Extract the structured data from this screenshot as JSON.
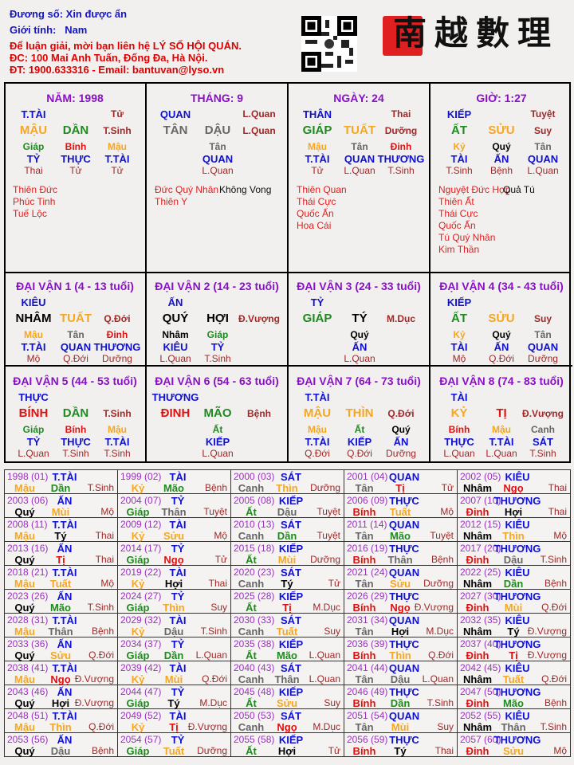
{
  "header": {
    "owner": "Đương số: Xin được ẩn",
    "gender_label": "Giới tính:",
    "gender": "Nam",
    "contact_1": "Để luận giải, mời bạn liên hệ LÝ SỐ HỘI QUÁN.",
    "contact_2": "ĐC: 100 Mai Anh Tuấn, Đống Đa, Hà Nội.",
    "contact_3": "ĐT: 1900.633316 - Email: bantuvan@lyso.vn",
    "logo_text": "南越數理",
    "qr_icon": "qr-code-icon"
  },
  "element_colors": {
    "wood": "#1f8a1f",
    "fire": "#e01010",
    "earth": "#f5a623",
    "metal": "#666666",
    "water": "#000000"
  },
  "element_of": {
    "giáp": "wood",
    "ất": "wood",
    "bính": "fire",
    "đinh": "fire",
    "mậu": "earth",
    "kỷ": "earth",
    "canh": "metal",
    "tân": "metal",
    "nhâm": "water",
    "quý": "water",
    "dần": "wood",
    "mão": "wood",
    "tị": "fire",
    "ngọ": "fire",
    "thìn": "earth",
    "tuất": "earth",
    "sửu": "earth",
    "mùi": "earth",
    "thân": "metal",
    "dậu": "metal",
    "tý": "water",
    "hợi": "water"
  },
  "pillars": [
    {
      "title": "NĂM: 1998",
      "god": "T.TÀI",
      "stage_top": "Tử",
      "stem": "MẬU",
      "branch": "DẦN",
      "stage": "T.Sinh",
      "hidden": [
        [
          "Giáp",
          "TỶ",
          "Thai"
        ],
        [
          "Bính",
          "THỰC",
          "Tử"
        ],
        [
          "Mậu",
          "T.TÀI",
          "Tử"
        ]
      ],
      "stars_red": [
        "Thiên Đức",
        "Phúc Tinh",
        "Tuế Lộc"
      ],
      "stars_black": []
    },
    {
      "title": "THÁNG: 9",
      "god": "QUAN",
      "stage_top": "L.Quan",
      "stem": "TÂN",
      "branch": "DẬU",
      "stage": "L.Quan",
      "hidden": [
        [
          "Tân",
          "QUAN",
          "L.Quan"
        ]
      ],
      "stars_red": [
        "Đức Quý Nhân",
        "Thiên Y"
      ],
      "stars_black": [
        "Không Vong"
      ]
    },
    {
      "title": "NGÀY: 24",
      "god": "THÂN",
      "stage_top": "Thai",
      "stem": "GIÁP",
      "branch": "TUẤT",
      "stage": "Dưỡng",
      "hidden": [
        [
          "Mậu",
          "T.TÀI",
          "Tử"
        ],
        [
          "Tân",
          "QUAN",
          "L.Quan"
        ],
        [
          "Đinh",
          "THƯƠNG",
          "T.Sinh"
        ]
      ],
      "stars_red": [
        "Thiên Quan",
        "Thái Cực",
        "Quốc Ấn",
        "Hoa Cái"
      ],
      "stars_black": []
    },
    {
      "title": "GIỜ: 1:27",
      "god": "KIẾP",
      "stage_top": "Tuyệt",
      "stem": "ẤT",
      "branch": "SỬU",
      "stage": "Suy",
      "hidden": [
        [
          "Kỷ",
          "TÀI",
          "T.Sinh"
        ],
        [
          "Quý",
          "ẤN",
          "Bệnh"
        ],
        [
          "Tân",
          "QUAN",
          "L.Quan"
        ]
      ],
      "stars_red": [
        "Nguyệt Đức Hợp",
        "Thiên Ất",
        "Thái Cực",
        "Quốc Ấn",
        "Tú Quý Nhân",
        "Kim Thần"
      ],
      "stars_black": [
        "Quả Tú"
      ]
    }
  ],
  "dai_van": [
    {
      "title": "ĐẠI VẬN 1 (4 - 13 tuổi)",
      "god": "KIÊU",
      "stem": "NHÂM",
      "branch": "TUẤT",
      "stage": "Q.Đới",
      "hidden": [
        [
          "Mậu",
          "T.TÀI",
          "Mộ"
        ],
        [
          "Tân",
          "QUAN",
          "Q.Đới"
        ],
        [
          "Đinh",
          "THƯƠNG",
          "Dưỡng"
        ]
      ]
    },
    {
      "title": "ĐẠI VẬN 2 (14 - 23 tuổi)",
      "god": "ẤN",
      "stem": "QUÝ",
      "branch": "HỢI",
      "stage": "Đ.Vượng",
      "hidden": [
        [
          "Nhâm",
          "KIÊU",
          "L.Quan"
        ],
        [
          "Giáp",
          "TỶ",
          "T.Sinh"
        ]
      ]
    },
    {
      "title": "ĐẠI VẬN 3 (24 - 33 tuổi)",
      "god": "TỶ",
      "stem": "GIÁP",
      "branch": "TÝ",
      "stage": "M.Dục",
      "hidden": [
        [
          "Quý",
          "ẤN",
          "L.Quan"
        ]
      ]
    },
    {
      "title": "ĐẠI VẬN 4 (34 - 43 tuổi)",
      "god": "KIẾP",
      "stem": "ẤT",
      "branch": "SỬU",
      "stage": "Suy",
      "hidden": [
        [
          "Kỷ",
          "TÀI",
          "Mộ"
        ],
        [
          "Quý",
          "ẤN",
          "Q.Đới"
        ],
        [
          "Tân",
          "QUAN",
          "Dưỡng"
        ]
      ]
    },
    {
      "title": "ĐẠI VẬN 5 (44 - 53 tuổi)",
      "god": "THỰC",
      "stem": "BÍNH",
      "branch": "DẦN",
      "stage": "T.Sinh",
      "hidden": [
        [
          "Giáp",
          "TỶ",
          "L.Quan"
        ],
        [
          "Bính",
          "THỰC",
          "T.Sinh"
        ],
        [
          "Mậu",
          "T.TÀI",
          "T.Sinh"
        ]
      ]
    },
    {
      "title": "ĐẠI VẬN 6 (54 - 63 tuổi)",
      "god": "THƯƠNG",
      "stem": "ĐINH",
      "branch": "MÃO",
      "stage": "Bệnh",
      "hidden": [
        [
          "Ất",
          "KIẾP",
          "L.Quan"
        ]
      ]
    },
    {
      "title": "ĐẠI VẬN 7 (64 - 73 tuổi)",
      "god": "T.TÀI",
      "stem": "MẬU",
      "branch": "THÌN",
      "stage": "Q.Đới",
      "hidden": [
        [
          "Mậu",
          "T.TÀI",
          "Q.Đới"
        ],
        [
          "Ất",
          "KIẾP",
          "Q.Đới"
        ],
        [
          "Quý",
          "ẤN",
          "Dưỡng"
        ]
      ]
    },
    {
      "title": "ĐẠI VẬN 8 (74 - 83 tuổi)",
      "god": "TÀI",
      "stem": "KỶ",
      "branch": "TỊ",
      "stage": "Đ.Vượng",
      "hidden": [
        [
          "Bính",
          "THỰC",
          "L.Quan"
        ],
        [
          "Mậu",
          "T.TÀI",
          "L.Quan"
        ],
        [
          "Canh",
          "SÁT",
          "T.Sinh"
        ]
      ]
    }
  ],
  "years": [
    [
      [
        "1998 (01)",
        "T.TÀI",
        "Mậu",
        "Dần",
        "T.Sinh"
      ],
      [
        "1999 (02)",
        "TÀI",
        "Kỷ",
        "Mão",
        "Bệnh"
      ],
      [
        "2000 (03)",
        "SÁT",
        "Canh",
        "Thìn",
        "Dưỡng"
      ],
      [
        "2001 (04)",
        "QUAN",
        "Tân",
        "Tị",
        "Tử"
      ],
      [
        "2002 (05)",
        "KIÊU",
        "Nhâm",
        "Ngọ",
        "Thai"
      ]
    ],
    [
      [
        "2003 (06)",
        "ẤN",
        "Quý",
        "Mùi",
        "Mộ"
      ],
      [
        "2004 (07)",
        "TỶ",
        "Giáp",
        "Thân",
        "Tuyệt"
      ],
      [
        "2005 (08)",
        "KIẾP",
        "Ất",
        "Dậu",
        "Tuyệt"
      ],
      [
        "2006 (09)",
        "THỰC",
        "Bính",
        "Tuất",
        "Mộ"
      ],
      [
        "2007 (10)",
        "THƯƠNG",
        "Đinh",
        "Hợi",
        "Thai"
      ]
    ],
    [
      [
        "2008 (11)",
        "T.TÀI",
        "Mậu",
        "Tý",
        "Thai"
      ],
      [
        "2009 (12)",
        "TÀI",
        "Kỷ",
        "Sửu",
        "Mộ"
      ],
      [
        "2010 (13)",
        "SÁT",
        "Canh",
        "Dần",
        "Tuyệt"
      ],
      [
        "2011 (14)",
        "QUAN",
        "Tân",
        "Mão",
        "Tuyệt"
      ],
      [
        "2012 (15)",
        "KIÊU",
        "Nhâm",
        "Thìn",
        "Mộ"
      ]
    ],
    [
      [
        "2013 (16)",
        "ẤN",
        "Quý",
        "Tị",
        "Thai"
      ],
      [
        "2014 (17)",
        "TỶ",
        "Giáp",
        "Ngọ",
        "Tử"
      ],
      [
        "2015 (18)",
        "KIẾP",
        "Ất",
        "Mùi",
        "Dưỡng"
      ],
      [
        "2016 (19)",
        "THỰC",
        "Bính",
        "Thân",
        "Bệnh"
      ],
      [
        "2017 (20)",
        "THƯƠNG",
        "Đinh",
        "Dậu",
        "T.Sinh"
      ]
    ],
    [
      [
        "2018 (21)",
        "T.TÀI",
        "Mậu",
        "Tuất",
        "Mộ"
      ],
      [
        "2019 (22)",
        "TÀI",
        "Kỷ",
        "Hợi",
        "Thai"
      ],
      [
        "2020 (23)",
        "SÁT",
        "Canh",
        "Tý",
        "Tử"
      ],
      [
        "2021 (24)",
        "QUAN",
        "Tân",
        "Sửu",
        "Dưỡng"
      ],
      [
        "2022 (25)",
        "KIÊU",
        "Nhâm",
        "Dần",
        "Bệnh"
      ]
    ],
    [
      [
        "2023 (26)",
        "ẤN",
        "Quý",
        "Mão",
        "T.Sinh"
      ],
      [
        "2024 (27)",
        "TỶ",
        "Giáp",
        "Thìn",
        "Suy"
      ],
      [
        "2025 (28)",
        "KIẾP",
        "Ất",
        "Tị",
        "M.Dục"
      ],
      [
        "2026 (29)",
        "THỰC",
        "Bính",
        "Ngọ",
        "Đ.Vượng"
      ],
      [
        "2027 (30)",
        "THƯƠNG",
        "Đinh",
        "Mùi",
        "Q.Đới"
      ]
    ],
    [
      [
        "2028 (31)",
        "T.TÀI",
        "Mậu",
        "Thân",
        "Bệnh"
      ],
      [
        "2029 (32)",
        "TÀI",
        "Kỷ",
        "Dậu",
        "T.Sinh"
      ],
      [
        "2030 (33)",
        "SÁT",
        "Canh",
        "Tuất",
        "Suy"
      ],
      [
        "2031 (34)",
        "QUAN",
        "Tân",
        "Hợi",
        "M.Dục"
      ],
      [
        "2032 (35)",
        "KIÊU",
        "Nhâm",
        "Tý",
        "Đ.Vượng"
      ]
    ],
    [
      [
        "2033 (36)",
        "ẤN",
        "Quý",
        "Sửu",
        "Q.Đới"
      ],
      [
        "2034 (37)",
        "TỶ",
        "Giáp",
        "Dần",
        "L.Quan"
      ],
      [
        "2035 (38)",
        "KIẾP",
        "Ất",
        "Mão",
        "L.Quan"
      ],
      [
        "2036 (39)",
        "THỰC",
        "Bính",
        "Thìn",
        "Q.Đới"
      ],
      [
        "2037 (40)",
        "THƯƠNG",
        "Đinh",
        "Tị",
        "Đ.Vượng"
      ]
    ],
    [
      [
        "2038 (41)",
        "T.TÀI",
        "Mậu",
        "Ngọ",
        "Đ.Vượng"
      ],
      [
        "2039 (42)",
        "TÀI",
        "Kỷ",
        "Mùi",
        "Q.Đới"
      ],
      [
        "2040 (43)",
        "SÁT",
        "Canh",
        "Thân",
        "L.Quan"
      ],
      [
        "2041 (44)",
        "QUAN",
        "Tân",
        "Dậu",
        "L.Quan"
      ],
      [
        "2042 (45)",
        "KIÊU",
        "Nhâm",
        "Tuất",
        "Q.Đới"
      ]
    ],
    [
      [
        "2043 (46)",
        "ẤN",
        "Quý",
        "Hợi",
        "Đ.Vượng"
      ],
      [
        "2044 (47)",
        "TỶ",
        "Giáp",
        "Tý",
        "M.Dục"
      ],
      [
        "2045 (48)",
        "KIẾP",
        "Ất",
        "Sửu",
        "Suy"
      ],
      [
        "2046 (49)",
        "THỰC",
        "Bính",
        "Dần",
        "T.Sinh"
      ],
      [
        "2047 (50)",
        "THƯƠNG",
        "Đinh",
        "Mão",
        "Bệnh"
      ]
    ],
    [
      [
        "2048 (51)",
        "T.TÀI",
        "Mậu",
        "Thìn",
        "Q.Đới"
      ],
      [
        "2049 (52)",
        "TÀI",
        "Kỷ",
        "Tị",
        "Đ.Vượng"
      ],
      [
        "2050 (53)",
        "SÁT",
        "Canh",
        "Ngọ",
        "M.Dục"
      ],
      [
        "2051 (54)",
        "QUAN",
        "Tân",
        "Mùi",
        "Suy"
      ],
      [
        "2052 (55)",
        "KIÊU",
        "Nhâm",
        "Thân",
        "T.Sinh"
      ]
    ],
    [
      [
        "2053 (56)",
        "ẤN",
        "Quý",
        "Dậu",
        "Bệnh"
      ],
      [
        "2054 (57)",
        "TỶ",
        "Giáp",
        "Tuất",
        "Dưỡng"
      ],
      [
        "2055 (58)",
        "KIẾP",
        "Ất",
        "Hợi",
        "Tử"
      ],
      [
        "2056 (59)",
        "THỰC",
        "Bính",
        "Tý",
        "Thai"
      ],
      [
        "2057 (60)",
        "THƯƠNG",
        "Đinh",
        "Sửu",
        "Mộ"
      ]
    ]
  ]
}
